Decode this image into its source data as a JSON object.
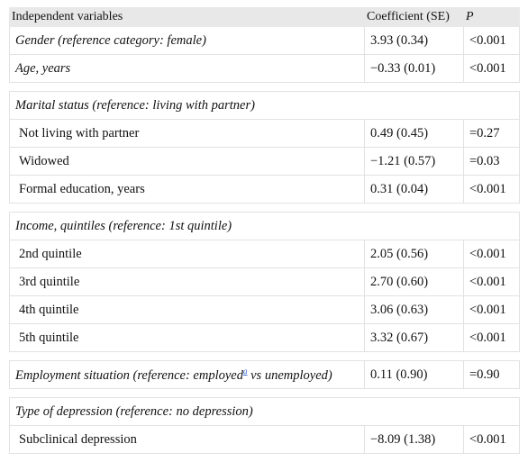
{
  "table": {
    "header": [
      "Independent variables",
      "Coefficient (SE)",
      "P"
    ],
    "rows": [
      [
        "Gender (reference category: female)",
        "3.93 (0.34)",
        "<0.001"
      ],
      [
        "Age, years",
        "−0.33 (0.01)",
        "<0.001"
      ],
      [
        "Marital status (reference: living with partner)"
      ],
      [
        "Not living with partner",
        "0.49 (0.45)",
        "=0.27"
      ],
      [
        "Widowed",
        "−1.21 (0.57)",
        "=0.03"
      ],
      [
        "Formal education, years",
        "0.31 (0.04)",
        "<0.001"
      ],
      [
        "Income, quintiles (reference: 1st quintile)"
      ],
      [
        "2nd quintile",
        "2.05 (0.56)",
        "<0.001"
      ],
      [
        "3rd quintile",
        "2.70 (0.60)",
        "<0.001"
      ],
      [
        "4th quintile",
        "3.06 (0.63)",
        "<0.001"
      ],
      [
        "5th quintile",
        "3.32 (0.67)",
        "<0.001"
      ],
      [
        [
          "Employment situation (reference: employed",
          "a",
          "vs unemployed)"
        ],
        "0.11 (0.90)",
        "=0.90"
      ],
      [
        "Type of depression (reference: no depression)"
      ],
      [
        "Subclinical depression",
        "−8.09 (1.38)",
        "<0.001"
      ]
    ]
  }
}
